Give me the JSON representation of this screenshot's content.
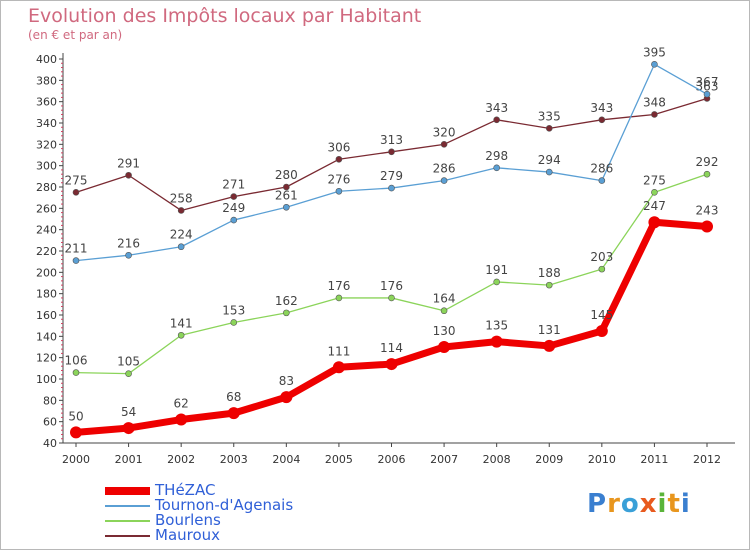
{
  "header": {
    "title": "Evolution des Impôts locaux par Habitant",
    "subtitle": "(en € et par an)"
  },
  "chart_data": {
    "type": "line",
    "title": "Evolution des Impôts locaux par Habitant",
    "subtitle": "(en € et par an)",
    "xlabel": "",
    "ylabel": "",
    "categories": [
      "2000",
      "2001",
      "2002",
      "2003",
      "2004",
      "2005",
      "2006",
      "2007",
      "2008",
      "2009",
      "2010",
      "2011",
      "2012"
    ],
    "ylim": [
      40,
      400
    ],
    "yticks": [
      40,
      60,
      80,
      100,
      120,
      140,
      160,
      180,
      200,
      220,
      240,
      260,
      280,
      300,
      320,
      340,
      360,
      380,
      400
    ],
    "grid": false,
    "legend_position": "bottom-left",
    "series": [
      {
        "name": "Mauroux",
        "color": "#7a2a32",
        "values": [
          275,
          291,
          258,
          271,
          280,
          306,
          313,
          320,
          343,
          335,
          343,
          348,
          363
        ]
      },
      {
        "name": "Tournon-d'Agenais",
        "color": "#5a9fd4",
        "values": [
          211,
          216,
          224,
          249,
          261,
          276,
          279,
          286,
          298,
          294,
          286,
          395,
          367
        ]
      },
      {
        "name": "Bourlens",
        "color": "#8bd45a",
        "values": [
          106,
          105,
          141,
          153,
          162,
          176,
          176,
          164,
          191,
          188,
          203,
          275,
          292
        ]
      },
      {
        "name": "THéZAC",
        "color": "#ee0000",
        "values": [
          50,
          54,
          62,
          68,
          83,
          111,
          114,
          130,
          135,
          131,
          145,
          247,
          243
        ]
      }
    ]
  },
  "legend": {
    "items": [
      {
        "label": "THéZAC",
        "color": "#ee0000"
      },
      {
        "label": "Tournon-d'Agenais",
        "color": "#5a9fd4"
      },
      {
        "label": "Bourlens",
        "color": "#8bd45a"
      },
      {
        "label": "Mauroux",
        "color": "#7a2a32"
      }
    ]
  },
  "logo": {
    "letters": [
      "P",
      "r",
      "o",
      "x",
      "i",
      "t",
      "i"
    ],
    "colors": [
      "#3a7fd0",
      "#e8961e",
      "#3aa0d8",
      "#e85a1e",
      "#5ab43a",
      "#e8961e",
      "#3a7fd0"
    ]
  }
}
